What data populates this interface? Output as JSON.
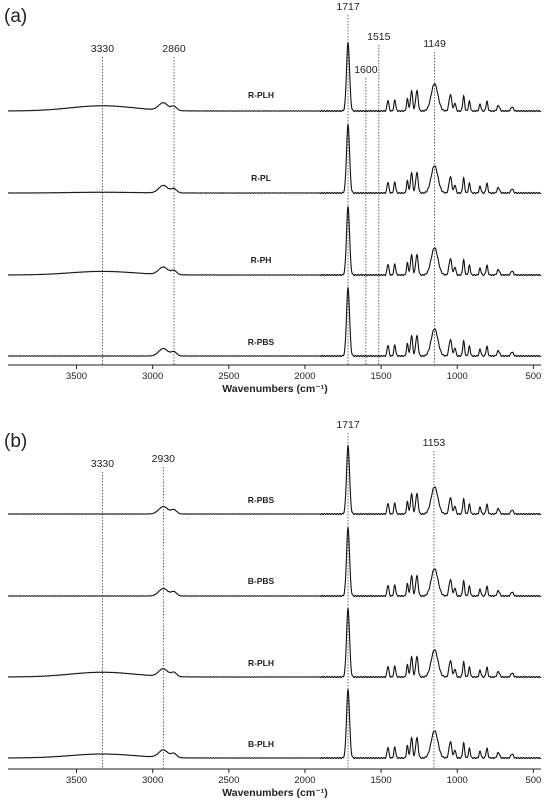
{
  "chart_data": [
    {
      "type": "line",
      "panel_label": "(a)",
      "xlabel": "Wavenumbers (cm⁻¹)",
      "xlim": [
        3950,
        450
      ],
      "x_ticks": [
        3500,
        3000,
        2500,
        2000,
        1500,
        1000,
        500
      ],
      "grid": false,
      "annotations": [
        {
          "x": 3330,
          "label": "3330"
        },
        {
          "x": 2860,
          "label": "2860"
        },
        {
          "x": 1717,
          "label": "1717"
        },
        {
          "x": 1600,
          "label": "1600"
        },
        {
          "x": 1515,
          "label": "1515"
        },
        {
          "x": 1149,
          "label": "1149"
        }
      ],
      "series": [
        {
          "name": "R-PLH",
          "oh_band": 0.55
        },
        {
          "name": "R-PL",
          "oh_band": 0.08
        },
        {
          "name": "R-PH",
          "oh_band": 0.38
        },
        {
          "name": "R-PBS",
          "oh_band": 0.0
        }
      ]
    },
    {
      "type": "line",
      "panel_label": "(b)",
      "xlabel": "Wavenumbers (cm⁻¹)",
      "xlim": [
        3950,
        450
      ],
      "x_ticks": [
        3500,
        3000,
        2500,
        2000,
        1500,
        1000,
        500
      ],
      "grid": false,
      "annotations": [
        {
          "x": 3330,
          "label": "3330"
        },
        {
          "x": 2930,
          "label": "2930"
        },
        {
          "x": 1717,
          "label": "1717"
        },
        {
          "x": 1153,
          "label": "1153"
        }
      ],
      "series": [
        {
          "name": "R-PBS",
          "oh_band": 0.0
        },
        {
          "name": "B-PBS",
          "oh_band": 0.0
        },
        {
          "name": "R-PLH",
          "oh_band": 0.5
        },
        {
          "name": "B-PLH",
          "oh_band": 0.42
        }
      ]
    }
  ]
}
